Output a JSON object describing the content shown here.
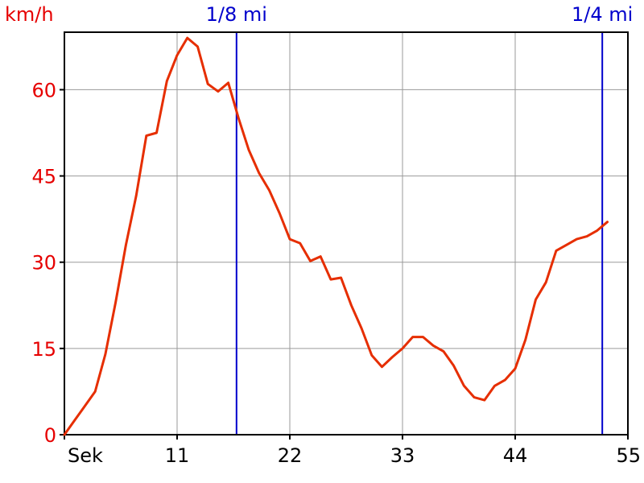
{
  "chart_data": {
    "type": "line",
    "title": "",
    "xlabel": "Sek",
    "ylabel": "km/h",
    "xlim": [
      0,
      55
    ],
    "ylim": [
      0,
      70
    ],
    "grid": true,
    "x_ticks": [
      {
        "value": 0,
        "label": "Sek"
      },
      {
        "value": 11,
        "label": "11"
      },
      {
        "value": 22,
        "label": "22"
      },
      {
        "value": 33,
        "label": "33"
      },
      {
        "value": 44,
        "label": "44"
      },
      {
        "value": 55,
        "label": "55"
      }
    ],
    "y_ticks": [
      {
        "value": 0,
        "label": "0"
      },
      {
        "value": 15,
        "label": "15"
      },
      {
        "value": 30,
        "label": "30"
      },
      {
        "value": 45,
        "label": "45"
      },
      {
        "value": 60,
        "label": "60"
      }
    ],
    "markers": [
      {
        "x": 16.8,
        "label": "1/8 mi"
      },
      {
        "x": 52.5,
        "label": "1/4 mi"
      }
    ],
    "series": [
      {
        "line_color": "#e62e00",
        "x": [
          0,
          1,
          2,
          3,
          4,
          5,
          6,
          7,
          8,
          9,
          10,
          11,
          12,
          13,
          14,
          15,
          16,
          17,
          18,
          19,
          20,
          21,
          22,
          23,
          24,
          25,
          26,
          27,
          28,
          29,
          30,
          31,
          32,
          33,
          34,
          35,
          36,
          37,
          38,
          39,
          40,
          41,
          42,
          43,
          44,
          45,
          46,
          47,
          48,
          49,
          50,
          51,
          52,
          53
        ],
        "values": [
          0,
          2.5,
          5,
          7.5,
          14,
          23,
          33,
          41.5,
          52,
          52.5,
          61.5,
          66,
          69,
          67.5,
          61,
          59.7,
          61.2,
          55,
          49.5,
          45.5,
          42.5,
          38.5,
          34,
          33.3,
          30.2,
          31,
          27,
          27.3,
          22.5,
          18.5,
          13.8,
          11.8,
          13.5,
          15,
          17,
          17,
          15.5,
          14.5,
          12,
          8.5,
          6.5,
          6,
          8.5,
          9.5,
          11.5,
          16.5,
          23.5,
          26.5,
          32,
          33,
          34,
          34.5,
          35.5,
          37
        ]
      }
    ]
  },
  "colors": {
    "axis_text": "#e60000",
    "marker": "#0000cc",
    "grid": "#9a9a9a",
    "line": "#e62e00"
  }
}
